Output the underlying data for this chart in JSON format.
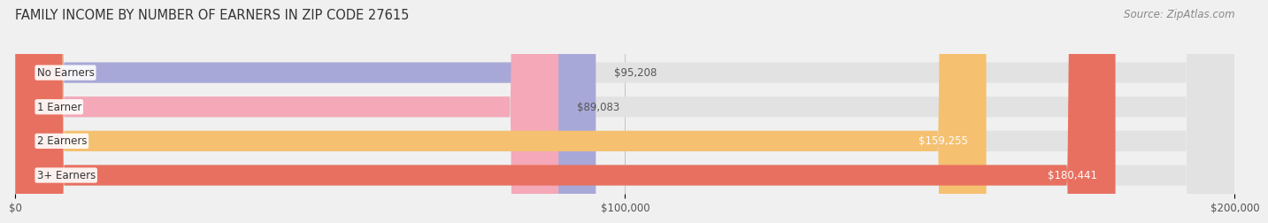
{
  "title": "FAMILY INCOME BY NUMBER OF EARNERS IN ZIP CODE 27615",
  "source": "Source: ZipAtlas.com",
  "categories": [
    "No Earners",
    "1 Earner",
    "2 Earners",
    "3+ Earners"
  ],
  "values": [
    95208,
    89083,
    159255,
    180441
  ],
  "bar_colors": [
    "#a8a8d8",
    "#f4a8b8",
    "#f5c070",
    "#e87060"
  ],
  "label_colors": [
    "#555555",
    "#555555",
    "#ffffff",
    "#ffffff"
  ],
  "value_labels": [
    "$95,208",
    "$89,083",
    "$159,255",
    "$180,441"
  ],
  "xlim": [
    0,
    200000
  ],
  "xticks": [
    0,
    100000,
    200000
  ],
  "xticklabels": [
    "$0",
    "$100,000",
    "$200,000"
  ],
  "background_color": "#f0f0f0",
  "bar_bg_color": "#e2e2e2",
  "title_fontsize": 10.5,
  "source_fontsize": 8.5,
  "label_fontsize": 8.5,
  "value_fontsize": 8.5,
  "tick_fontsize": 8.5
}
